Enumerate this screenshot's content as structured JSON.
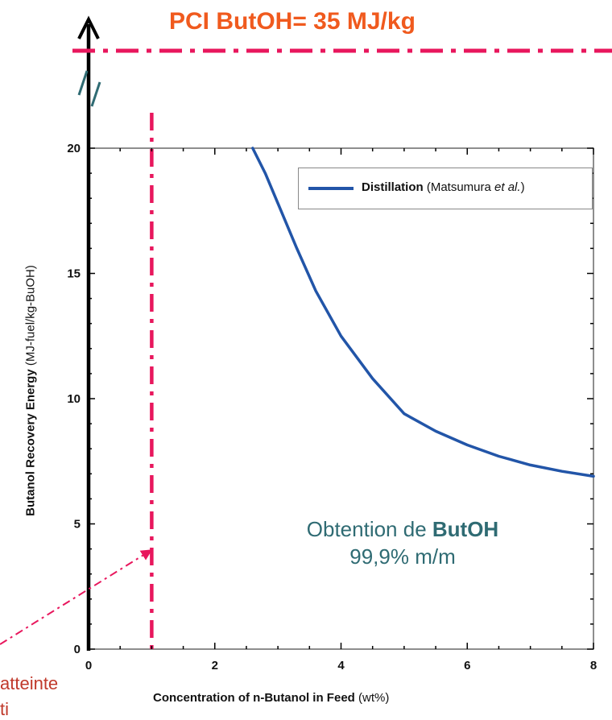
{
  "header": {
    "pci_title": "PCI ButOH= 35 MJ/kg"
  },
  "legend": {
    "label": "Distillation",
    "source_prefix": "(Matsumura ",
    "source_italic": "et al.",
    "source_suffix": ")"
  },
  "annotation": {
    "line1_prefix": "Obtention de ",
    "line1_bold": "ButOH",
    "line2": "99,9% m/m"
  },
  "side_note": {
    "line1": "atteinte",
    "line2": "ti"
  },
  "colors": {
    "curve": "#2255a8",
    "pci_title": "#f05a1e",
    "dash_line": "#e8175d",
    "annotation": "#2f6b73",
    "side_note": "#c0392b"
  },
  "chart_data": {
    "type": "line",
    "xlabel": "Concentration of n-Butanol in Feed",
    "xlabel_unit": "(wt%)",
    "ylabel": "Butanol Recovery Energy",
    "ylabel_unit": "(MJ-fuel/kg-BuOH)",
    "xlim": [
      0,
      8
    ],
    "ylim": [
      0,
      20
    ],
    "x_ticks": [
      "0",
      "2",
      "4",
      "6",
      "8"
    ],
    "y_ticks": [
      "0",
      "5",
      "10",
      "15",
      "20"
    ],
    "grid": false,
    "legend_position": "top-right",
    "series": [
      {
        "name": "Distillation (Matsumura et al.)",
        "x": [
          2.6,
          2.8,
          3.0,
          3.3,
          3.6,
          4.0,
          4.5,
          5.0,
          5.5,
          6.0,
          6.5,
          7.0,
          7.5,
          8.0
        ],
        "y": [
          20.0,
          19.0,
          17.8,
          16.0,
          14.3,
          12.5,
          10.8,
          9.4,
          8.7,
          8.15,
          7.7,
          7.35,
          7.1,
          6.9
        ]
      }
    ],
    "reference_lines": [
      {
        "axis": "x",
        "value": 1.0,
        "style": "dash-dot"
      },
      {
        "axis": "y",
        "label": "PCI ButOH= 35 MJ/kg",
        "value": 35,
        "style": "dash-dot",
        "broken_axis": true
      }
    ]
  }
}
